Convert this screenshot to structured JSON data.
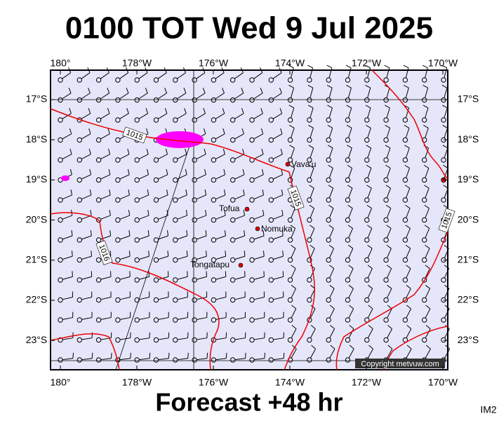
{
  "header": {
    "title": "0100 TOT Wed 9 Jul 2025"
  },
  "footer": {
    "forecast": "Forecast +48 hr",
    "code": "IM2"
  },
  "map": {
    "lon_labels": [
      "180°",
      "178°W",
      "176°W",
      "174°W",
      "172°W",
      "170°W"
    ],
    "lat_labels": [
      "17°S",
      "18°S",
      "19°S",
      "20°S",
      "21°S",
      "22°S",
      "23°S"
    ],
    "places": [
      "Vava'u",
      "Tofua",
      "Nomuka",
      "Tongatapu"
    ],
    "isobar_labels": [
      "1015",
      "1015",
      "1016",
      "1015"
    ],
    "copyright": "Copyright metvuw.com"
  }
}
